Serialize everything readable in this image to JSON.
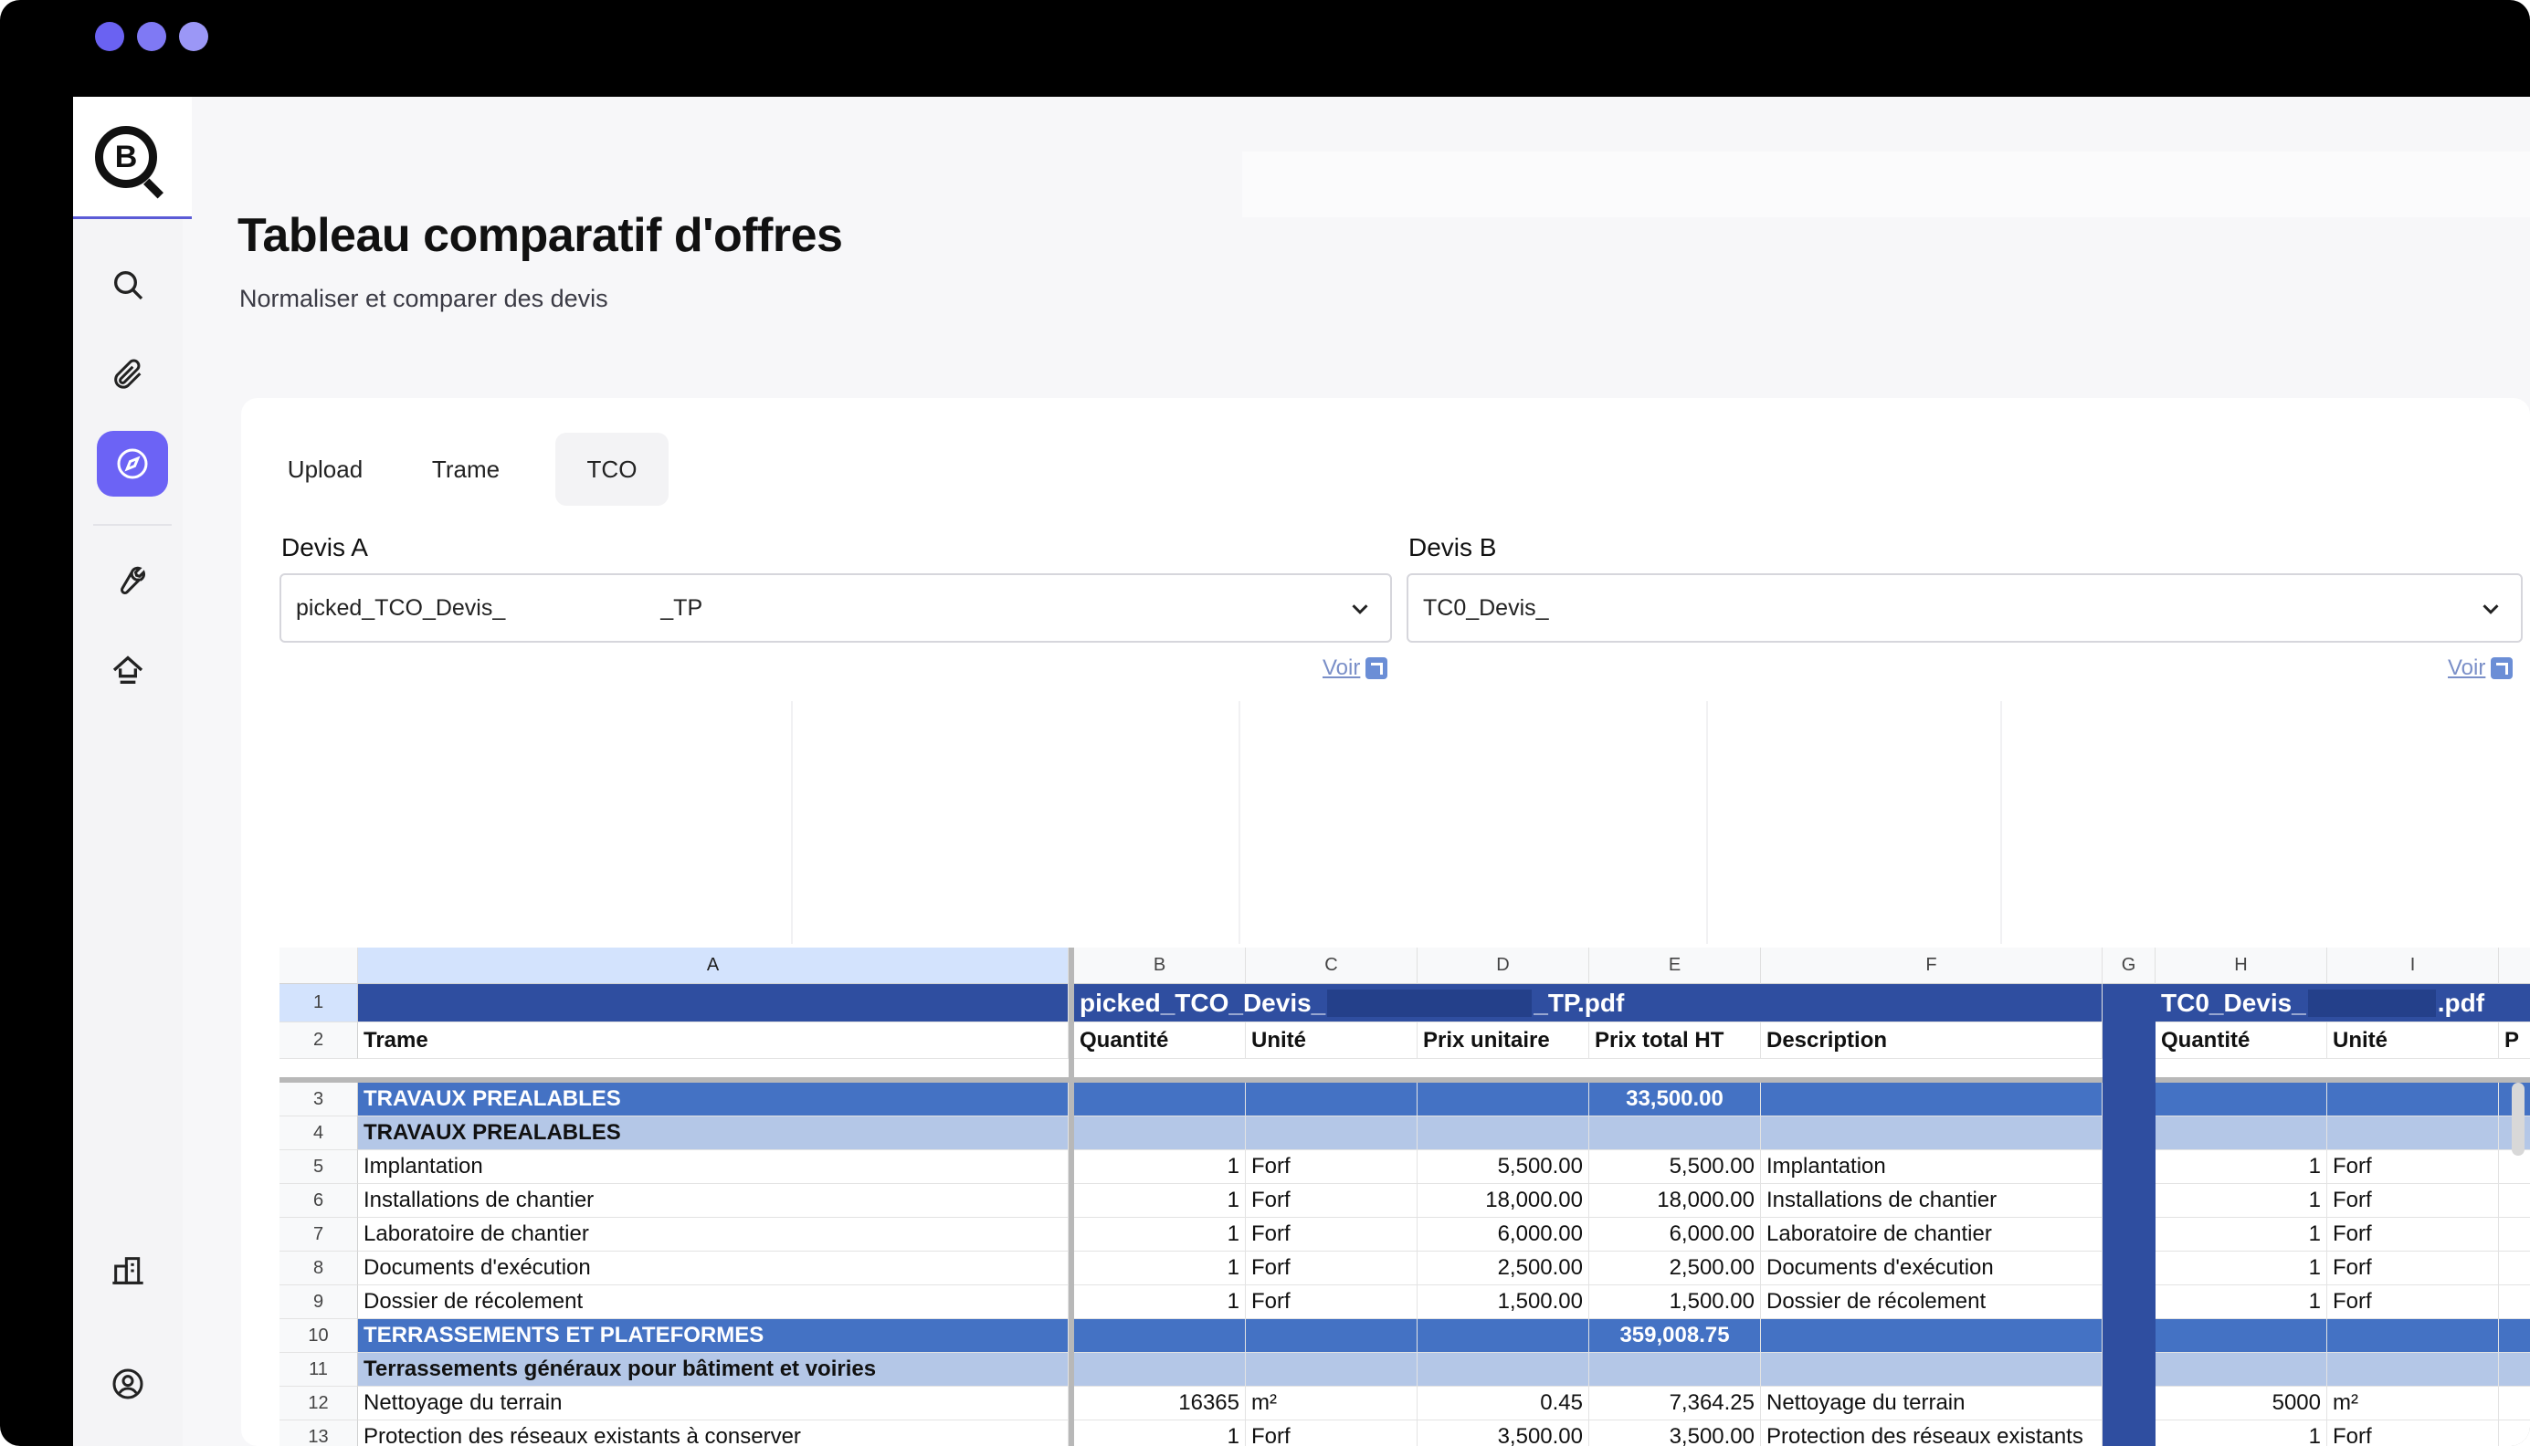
{
  "window": {
    "dots": [
      "#6a62f2",
      "#7f79f4",
      "#9b97f6"
    ]
  },
  "sidebar": {
    "logo_letter": "B",
    "items": [
      {
        "icon": "search-icon"
      },
      {
        "icon": "paperclip-icon"
      },
      {
        "icon": "compass-icon",
        "active": true
      },
      {
        "icon": "wrench-icon"
      },
      {
        "icon": "upload-home-icon"
      },
      {
        "icon": "building-icon"
      },
      {
        "icon": "user-circle-icon"
      }
    ]
  },
  "header": {
    "title": "Tableau comparatif d'offres",
    "subtitle": "Normaliser et comparer des devis"
  },
  "tabs": [
    {
      "label": "Upload"
    },
    {
      "label": "Trame"
    },
    {
      "label": "TCO",
      "active": true
    }
  ],
  "devis_a": {
    "label": "Devis A",
    "value_start": "picked_TCO_Devis_",
    "value_end": "_TP",
    "link": "Voir"
  },
  "devis_b": {
    "label": "Devis B",
    "value": "TC0_Devis_",
    "link": "Voir"
  },
  "sheet": {
    "columns": [
      "A",
      "B",
      "C",
      "D",
      "E",
      "F",
      "G",
      "H",
      "I"
    ],
    "file_a": {
      "start": "picked_TCO_Devis_",
      "end": "_TP.pdf"
    },
    "file_b": {
      "start": "TC0_Devis_",
      "end": ".pdf"
    },
    "headers": {
      "trame": "Trame",
      "quantite": "Quantité",
      "unite": "Unité",
      "prix_unitaire": "Prix unitaire",
      "prix_total": "Prix total HT",
      "description": "Description",
      "quantite_b": "Quantité",
      "unite_b": "Unité",
      "p_b": "P"
    },
    "rows": [
      {
        "n": "3",
        "kind": "sec",
        "a": "TRAVAUX PREALABLES",
        "e": "33,500.00"
      },
      {
        "n": "4",
        "kind": "sub",
        "a": "TRAVAUX PREALABLES"
      },
      {
        "n": "5",
        "kind": "item",
        "a": "Implantation",
        "b": "1",
        "c": "Forf",
        "d": "5,500.00",
        "e": "5,500.00",
        "f": "Implantation",
        "h": "1",
        "i": "Forf"
      },
      {
        "n": "6",
        "kind": "item",
        "a": "Installations de chantier",
        "b": "1",
        "c": "Forf",
        "d": "18,000.00",
        "e": "18,000.00",
        "f": "Installations de chantier",
        "h": "1",
        "i": "Forf"
      },
      {
        "n": "7",
        "kind": "item",
        "a": "Laboratoire de chantier",
        "b": "1",
        "c": "Forf",
        "d": "6,000.00",
        "e": "6,000.00",
        "f": "Laboratoire de chantier",
        "h": "1",
        "i": "Forf"
      },
      {
        "n": "8",
        "kind": "item",
        "a": "Documents d'exécution",
        "b": "1",
        "c": "Forf",
        "d": "2,500.00",
        "e": "2,500.00",
        "f": "Documents d'exécution",
        "h": "1",
        "i": "Forf"
      },
      {
        "n": "9",
        "kind": "item",
        "a": "Dossier de récolement",
        "b": "1",
        "c": "Forf",
        "d": "1,500.00",
        "e": "1,500.00",
        "f": "Dossier de récolement",
        "h": "1",
        "i": "Forf"
      },
      {
        "n": "10",
        "kind": "sec",
        "a": "TERRASSEMENTS ET PLATEFORMES",
        "e": "359,008.75"
      },
      {
        "n": "11",
        "kind": "sub",
        "a": "Terrassements généraux pour bâtiment et voiries"
      },
      {
        "n": "12",
        "kind": "item",
        "a": "Nettoyage du terrain",
        "b": "16365",
        "c": "m²",
        "d": "0.45",
        "e": "7,364.25",
        "f": "Nettoyage du terrain",
        "h": "5000",
        "i": "m²"
      },
      {
        "n": "13",
        "kind": "item",
        "a": "Protection des réseaux existants à conserver",
        "b": "1",
        "c": "Forf",
        "d": "3,500.00",
        "e": "3,500.00",
        "f": "Protection des réseaux existants",
        "h": "1",
        "i": "Forf"
      }
    ]
  }
}
